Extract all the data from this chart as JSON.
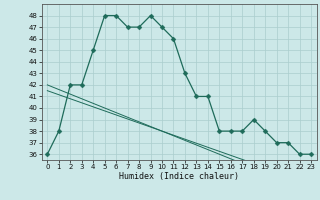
{
  "title": "",
  "xlabel": "Humidex (Indice chaleur)",
  "x": [
    0,
    1,
    2,
    3,
    4,
    5,
    6,
    7,
    8,
    9,
    10,
    11,
    12,
    13,
    14,
    15,
    16,
    17,
    18,
    19,
    20,
    21,
    22,
    23
  ],
  "y_main": [
    36,
    38,
    42,
    42,
    45,
    48,
    48,
    47,
    47,
    48,
    47,
    46,
    43,
    41,
    41,
    38,
    38,
    38,
    39,
    38,
    37,
    37,
    36,
    36
  ],
  "y_line1": [
    42.0,
    41.6,
    41.2,
    40.8,
    40.4,
    40.0,
    39.6,
    39.2,
    38.8,
    38.4,
    38.0,
    37.6,
    37.2,
    36.8,
    36.4,
    36.0,
    35.6,
    35.2,
    34.8,
    34.4,
    34.0,
    33.6,
    33.2,
    32.8
  ],
  "y_line2": [
    41.5,
    41.15,
    40.8,
    40.45,
    40.1,
    39.75,
    39.4,
    39.05,
    38.7,
    38.35,
    38.0,
    37.65,
    37.3,
    36.95,
    36.6,
    36.25,
    35.9,
    35.55,
    35.2,
    34.85,
    34.5,
    34.15,
    33.8,
    33.45
  ],
  "ylim": [
    35.5,
    49.0
  ],
  "xlim": [
    -0.5,
    23.5
  ],
  "yticks": [
    36,
    37,
    38,
    39,
    40,
    41,
    42,
    43,
    44,
    45,
    46,
    47,
    48
  ],
  "xticks": [
    0,
    1,
    2,
    3,
    4,
    5,
    6,
    7,
    8,
    9,
    10,
    11,
    12,
    13,
    14,
    15,
    16,
    17,
    18,
    19,
    20,
    21,
    22,
    23
  ],
  "line_color": "#1e6b5a",
  "bg_color": "#cce8e8",
  "grid_color": "#aacece",
  "markersize": 2.5
}
